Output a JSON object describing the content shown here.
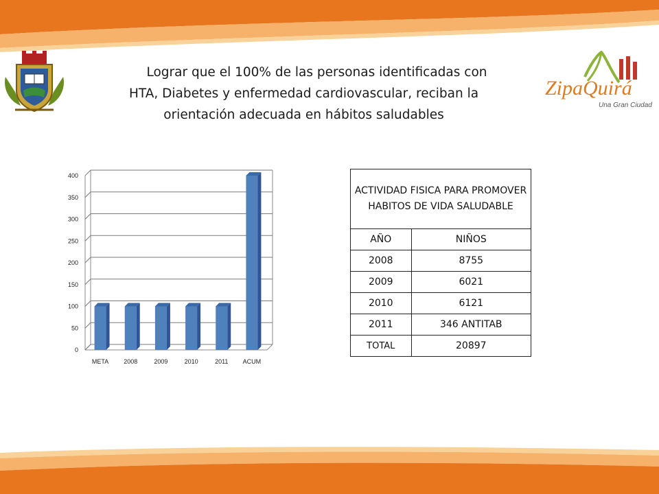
{
  "title": {
    "line1": "Lograr que el 100% de las personas identificadas con",
    "line2": "HTA, Diabetes y enfermedad cardiovascular, reciban la",
    "line3": "orientación adecuada en hábitos saludables"
  },
  "logos": {
    "left": {
      "icon": "coat-of-arms-icon"
    },
    "right": {
      "icon": "zipaquira-logo-icon",
      "text": "ZipaQuirá",
      "tagline": "Una Gran Ciudad"
    }
  },
  "colors": {
    "band_orange": "#E8761E",
    "band_light": "#F6B26B",
    "bar": "#4F81BD",
    "bar_side": "#2F5597",
    "bar_top": "#3A6AA8"
  },
  "chart_data": {
    "type": "bar",
    "categories": [
      "META",
      "2008",
      "2009",
      "2010",
      "2011",
      "ACUM"
    ],
    "values": [
      100,
      100,
      100,
      100,
      100,
      400
    ],
    "yticks": [
      "0",
      "50",
      "100",
      "150",
      "200",
      "250",
      "300",
      "350",
      "400"
    ],
    "ylim": [
      0,
      400
    ],
    "grid": true,
    "legend": "none",
    "style": "3d-column"
  },
  "table": {
    "header": "ACTIVIDAD FISICA PARA PROMOVER HABITOS DE VIDA SALUDABLE",
    "columns": [
      "AÑO",
      "NIÑOS"
    ],
    "rows": [
      [
        "2008",
        "8755"
      ],
      [
        "2009",
        "6021"
      ],
      [
        "2010",
        "6121"
      ],
      [
        "2011",
        "346 ANTITAB"
      ],
      [
        "TOTAL",
        "20897"
      ]
    ]
  }
}
